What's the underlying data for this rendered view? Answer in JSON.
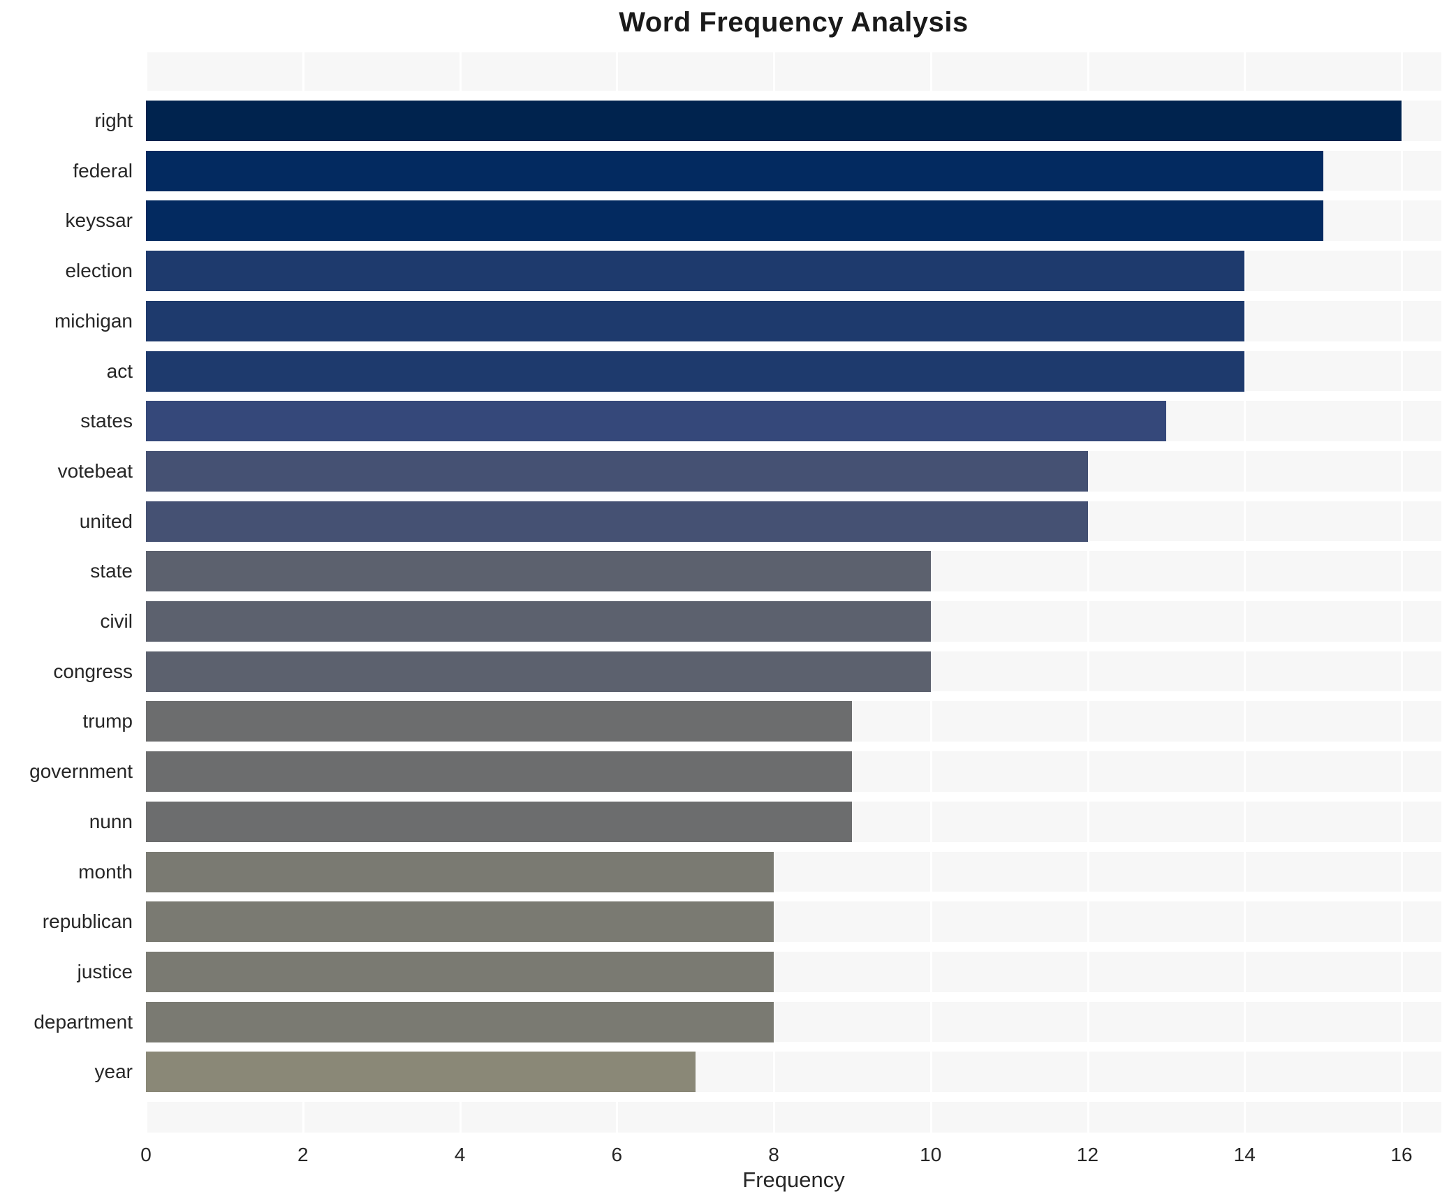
{
  "chart_data": {
    "type": "bar",
    "orientation": "horizontal",
    "title": "Word Frequency Analysis",
    "xlabel": "Frequency",
    "ylabel": "",
    "categories": [
      "right",
      "federal",
      "keyssar",
      "election",
      "michigan",
      "act",
      "states",
      "votebeat",
      "united",
      "state",
      "civil",
      "congress",
      "trump",
      "government",
      "nunn",
      "month",
      "republican",
      "justice",
      "department",
      "year"
    ],
    "values": [
      16,
      15,
      15,
      14,
      14,
      14,
      13,
      12,
      12,
      10,
      10,
      10,
      9,
      9,
      9,
      8,
      8,
      8,
      8,
      7
    ],
    "bar_colors": [
      "#00234e",
      "#032a60",
      "#032a60",
      "#1e3a6d",
      "#1e3a6d",
      "#1e3a6d",
      "#35487a",
      "#455173",
      "#455173",
      "#5c616e",
      "#5c616e",
      "#5c616e",
      "#6c6d6e",
      "#6c6d6e",
      "#6c6d6e",
      "#7a7a72",
      "#7a7a72",
      "#7a7a72",
      "#7a7a72",
      "#8a8877"
    ],
    "xticks": [
      0,
      2,
      4,
      6,
      8,
      10,
      12,
      14,
      16
    ],
    "xlim": [
      0,
      16.5
    ],
    "grid": true,
    "legend": "none",
    "plot_background": "#f7f7f7",
    "grid_color": "#ffffff",
    "text_color": "#262626",
    "title_color": "#1a1a1a"
  }
}
